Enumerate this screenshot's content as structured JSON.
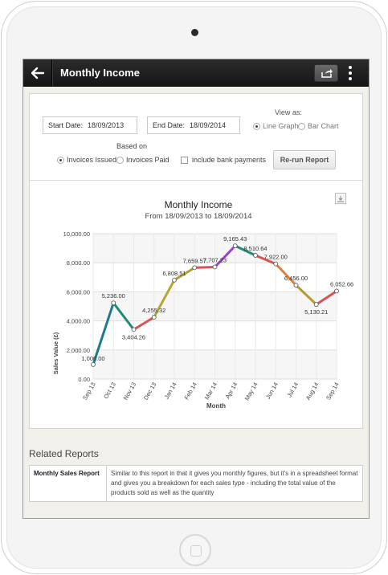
{
  "header": {
    "title": "Monthly Income",
    "back_icon": "back-arrow-icon",
    "share_icon": "share-icon",
    "menu_icon": "more-vertical-icon"
  },
  "filters": {
    "start_date_label": "Start Date:",
    "start_date_value": "18/09/2013",
    "end_date_label": "End Date:",
    "end_date_value": "18/09/2014",
    "view_as_label": "View as:",
    "view_options": [
      {
        "label": "Line Graph",
        "selected": true
      },
      {
        "label": "Bar Chart",
        "selected": false
      }
    ],
    "based_on_label": "Based on",
    "based_on_options": [
      {
        "label": "Invoices Issued",
        "selected": true
      },
      {
        "label": "Invoices Paid",
        "selected": false
      }
    ],
    "include_bank_label": "include bank payments",
    "include_bank_checked": false,
    "rerun_label": "Re-run Report"
  },
  "chart_data": {
    "type": "line",
    "title": "Monthly Income",
    "subtitle": "From 18/09/2013 to 18/09/2014",
    "xlabel": "Month",
    "ylabel": "Sales Value (£)",
    "ylim": [
      0,
      10000
    ],
    "yticks": [
      "0.00",
      "2,000.00",
      "4,000.00",
      "6,000.00",
      "8,000.00",
      "10,000.00"
    ],
    "ytick_values": [
      0,
      2000,
      4000,
      6000,
      8000,
      10000
    ],
    "grid": true,
    "categories": [
      "Sep 13",
      "Oct 13",
      "Nov 13",
      "Dec 13",
      "Jan 14",
      "Feb 14",
      "Mar 14",
      "Apr 14",
      "May 14",
      "Jun 14",
      "Jul 14",
      "Aug 14",
      "Sep 14"
    ],
    "values": [
      1000.0,
      5236.0,
      3404.26,
      4255.32,
      6808.51,
      7659.57,
      7707.23,
      9165.43,
      8510.64,
      7922.0,
      6456.0,
      5130.21,
      6052.66
    ],
    "labels": [
      "1,000.00",
      "5,236.00",
      "3,404.26",
      "4,255.32",
      "6,808.51",
      "7,659.57",
      "7,707.23",
      "9,165.43",
      "8,510.64",
      "7,922.00",
      "6,456.00",
      "5,130.21",
      "6,052.66"
    ],
    "segment_colors": [
      "#1f7a8c",
      "#1f8a7a",
      "#d9534f",
      "#b5a832",
      "#b59a32",
      "#d9534f",
      "#9b3fcf",
      "#1f8a7a",
      "#d9534f",
      "#e07f3a",
      "#b59a32",
      "#d9534f",
      "#9b3fcf"
    ]
  },
  "export_icon": "export-image-icon",
  "related": {
    "title": "Related Reports",
    "rows": [
      {
        "name": "Monthly Sales Report",
        "description": "Similar to this report in that it gives you monthly figures, but it's in a spreadsheet format and gives you a breakdown for each sales type - including the total value of the products sold as well as the quantity"
      }
    ]
  }
}
